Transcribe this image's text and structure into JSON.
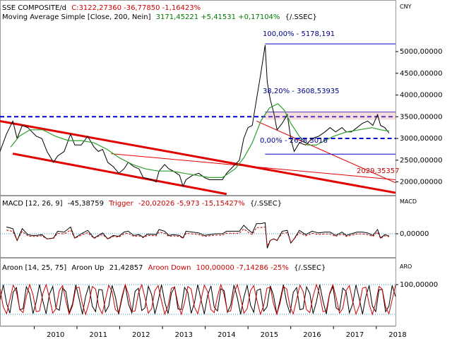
{
  "colors": {
    "price": "#000000",
    "ma": "#2e9e2e",
    "channel": "#e00000",
    "fib": "#0000cc",
    "macd": "#000000",
    "trigger": "#cc0000",
    "aroon_up": "#000000",
    "aroon_down": "#cc0000",
    "text_blue": "#00008b",
    "text_green": "#007a00",
    "text_red": "#cc0000"
  },
  "header": {
    "title": "SSE COMPOSITE/d",
    "quote": "C:3122,27360 -36,77850 -1,16423%",
    "ma_label": "Moving Average Simple [Close, 200, Nein]",
    "ma_values": "3171,45221 +5,41531 +0,17104%",
    "source": "{/.SSEC}"
  },
  "price_panel": {
    "currency": "CNY",
    "ylim": [
      1700,
      5700
    ],
    "ticks": [
      "5000,00000",
      "4500,00000",
      "4000,00000",
      "3500,00000",
      "3000,00000",
      "2500,00000",
      "2000,00000"
    ],
    "tick_values": [
      5000,
      4500,
      4000,
      3500,
      3000,
      2500,
      2000
    ],
    "fib_labels": {
      "top": "100,00% - 5178,191",
      "mid": "38,20% - 3608,53935",
      "bottom": "0,00% - 2638,3016",
      "target": "2029,35357"
    }
  },
  "macd_panel": {
    "label": "MACD [12, 26, 9]",
    "macd_value": "-45,38759",
    "trigger_label": "Trigger",
    "trigger_values": "-20,02026 -5,973 -15,15427%",
    "source": "{/.SSEC}",
    "axis_title": "MACD",
    "zero_label": "0,00000"
  },
  "aroon_panel": {
    "label": "Aroon [14, 25, 75]",
    "up_label": "Aroon Up",
    "up_value": "21,42857",
    "down_label": "Aroon Down",
    "down_values": "100,00000 -7,14286 -25%",
    "source": "{/.SSEC}",
    "axis_title": "ARO",
    "top_label": "100,00000"
  },
  "x_axis": {
    "years": [
      "2010",
      "2011",
      "2012",
      "2013",
      "2014",
      "2015",
      "2016",
      "2017",
      "2018"
    ]
  },
  "chart_data": {
    "type": "line",
    "x_unit": "year",
    "xlim": [
      2009.2,
      2018.45
    ],
    "series": [
      {
        "name": "SSE COMPOSITE/d",
        "points": [
          [
            2009.2,
            2700
          ],
          [
            2009.35,
            3100
          ],
          [
            2009.5,
            3400
          ],
          [
            2009.6,
            3000
          ],
          [
            2009.72,
            3300
          ],
          [
            2009.85,
            3250
          ],
          [
            2009.95,
            3150
          ],
          [
            2010.05,
            3050
          ],
          [
            2010.18,
            3000
          ],
          [
            2010.3,
            2700
          ],
          [
            2010.45,
            2450
          ],
          [
            2010.55,
            2600
          ],
          [
            2010.7,
            2700
          ],
          [
            2010.85,
            3100
          ],
          [
            2010.95,
            2850
          ],
          [
            2011.1,
            2850
          ],
          [
            2011.25,
            3050
          ],
          [
            2011.4,
            2800
          ],
          [
            2011.5,
            2700
          ],
          [
            2011.6,
            2750
          ],
          [
            2011.72,
            2450
          ],
          [
            2011.85,
            2350
          ],
          [
            2011.98,
            2200
          ],
          [
            2012.1,
            2300
          ],
          [
            2012.2,
            2450
          ],
          [
            2012.33,
            2350
          ],
          [
            2012.45,
            2300
          ],
          [
            2012.55,
            2100
          ],
          [
            2012.65,
            2080
          ],
          [
            2012.75,
            2050
          ],
          [
            2012.85,
            2000
          ],
          [
            2012.92,
            2250
          ],
          [
            2013.05,
            2400
          ],
          [
            2013.15,
            2300
          ],
          [
            2013.25,
            2250
          ],
          [
            2013.4,
            2150
          ],
          [
            2013.48,
            1900
          ],
          [
            2013.55,
            2050
          ],
          [
            2013.7,
            2150
          ],
          [
            2013.85,
            2200
          ],
          [
            2013.98,
            2100
          ],
          [
            2014.1,
            2050
          ],
          [
            2014.25,
            2050
          ],
          [
            2014.4,
            2050
          ],
          [
            2014.5,
            2200
          ],
          [
            2014.65,
            2350
          ],
          [
            2014.8,
            2500
          ],
          [
            2014.9,
            3000
          ],
          [
            2015.0,
            3250
          ],
          [
            2015.1,
            3300
          ],
          [
            2015.2,
            3900
          ],
          [
            2015.3,
            4500
          ],
          [
            2015.4,
            5150
          ],
          [
            2015.45,
            4300
          ],
          [
            2015.52,
            3900
          ],
          [
            2015.6,
            3600
          ],
          [
            2015.68,
            3200
          ],
          [
            2015.8,
            3350
          ],
          [
            2015.92,
            3550
          ],
          [
            2016.0,
            3000
          ],
          [
            2016.08,
            2700
          ],
          [
            2016.2,
            2900
          ],
          [
            2016.35,
            2850
          ],
          [
            2016.5,
            3000
          ],
          [
            2016.65,
            3050
          ],
          [
            2016.8,
            3150
          ],
          [
            2016.92,
            3250
          ],
          [
            2017.05,
            3150
          ],
          [
            2017.2,
            3250
          ],
          [
            2017.3,
            3150
          ],
          [
            2017.42,
            3150
          ],
          [
            2017.55,
            3250
          ],
          [
            2017.68,
            3350
          ],
          [
            2017.8,
            3400
          ],
          [
            2017.92,
            3300
          ],
          [
            2018.03,
            3550
          ],
          [
            2018.1,
            3300
          ],
          [
            2018.2,
            3250
          ],
          [
            2018.3,
            3122
          ]
        ]
      },
      {
        "name": "Moving Average Simple [Close, 200, Nein]",
        "points": [
          [
            2009.45,
            2800
          ],
          [
            2009.65,
            3050
          ],
          [
            2009.9,
            3200
          ],
          [
            2010.2,
            3200
          ],
          [
            2010.5,
            3050
          ],
          [
            2010.8,
            2950
          ],
          [
            2011.1,
            2950
          ],
          [
            2011.4,
            2900
          ],
          [
            2011.7,
            2750
          ],
          [
            2012.0,
            2550
          ],
          [
            2012.3,
            2400
          ],
          [
            2012.6,
            2300
          ],
          [
            2012.9,
            2250
          ],
          [
            2013.2,
            2250
          ],
          [
            2013.5,
            2200
          ],
          [
            2013.8,
            2150
          ],
          [
            2014.1,
            2100
          ],
          [
            2014.4,
            2100
          ],
          [
            2014.7,
            2300
          ],
          [
            2014.9,
            2550
          ],
          [
            2015.1,
            2900
          ],
          [
            2015.3,
            3400
          ],
          [
            2015.5,
            3700
          ],
          [
            2015.7,
            3800
          ],
          [
            2015.85,
            3650
          ],
          [
            2016.0,
            3350
          ],
          [
            2016.2,
            3050
          ],
          [
            2016.4,
            2850
          ],
          [
            2016.6,
            2850
          ],
          [
            2016.8,
            2950
          ],
          [
            2017.0,
            3050
          ],
          [
            2017.3,
            3150
          ],
          [
            2017.6,
            3200
          ],
          [
            2017.9,
            3250
          ],
          [
            2018.1,
            3200
          ],
          [
            2018.3,
            3171
          ]
        ]
      }
    ],
    "annotations": {
      "fib_100": 5178.191,
      "fib_382": 3608.53935,
      "fib_0": 2638.3016,
      "target": 2029.35357
    }
  }
}
